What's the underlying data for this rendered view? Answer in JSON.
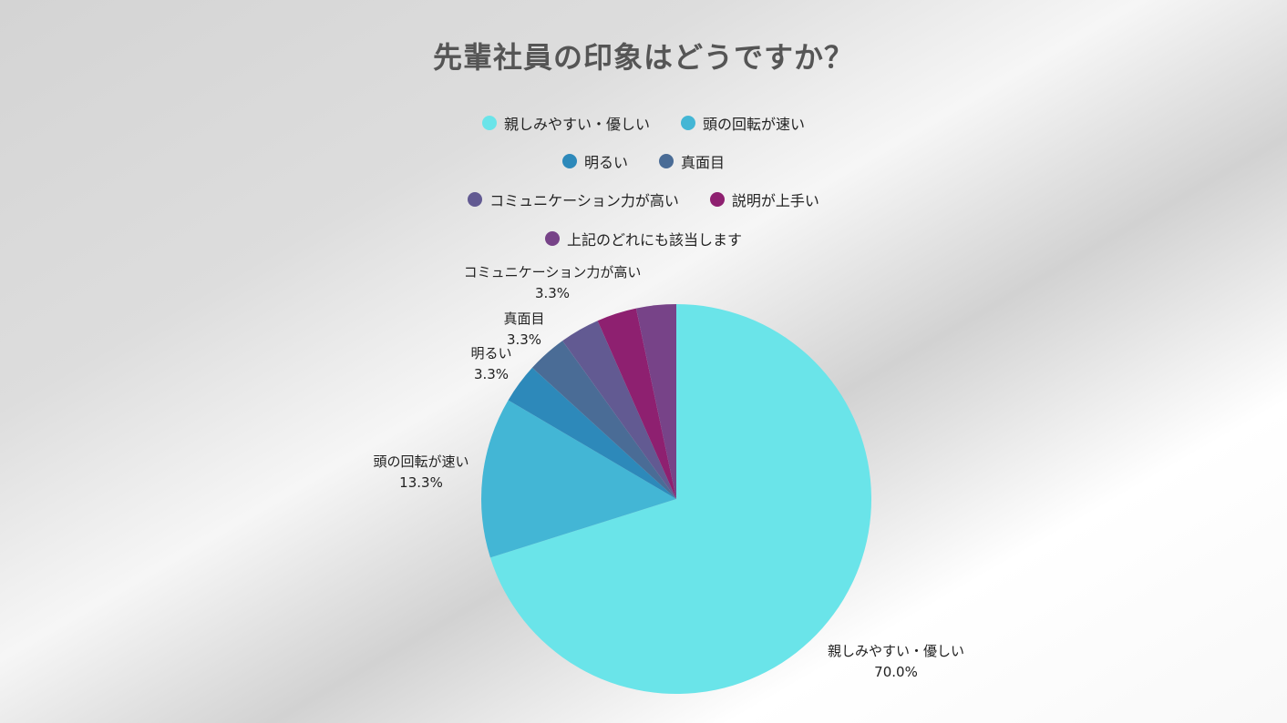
{
  "chart_data": {
    "type": "pie",
    "title": "先輩社員の印象はどうですか？",
    "legend_placement": "top",
    "categories": [
      "親しみやすい・優しい",
      "頭の回転が速い",
      "明るい",
      "真面目",
      "コミュニケーション力が高い",
      "説明が上手い",
      "上記のどれにも該当します"
    ],
    "values": [
      70.0,
      13.3,
      3.3,
      3.3,
      3.3,
      3.3,
      3.3
    ],
    "value_labels": [
      "70.0%",
      "13.3%",
      "3.3%",
      "3.3%",
      "3.3%",
      "",
      ""
    ],
    "colors": [
      "#6ae4e9",
      "#43b6d5",
      "#2d89ba",
      "#4a6c96",
      "#625a92",
      "#8e2070",
      "#774388"
    ]
  }
}
